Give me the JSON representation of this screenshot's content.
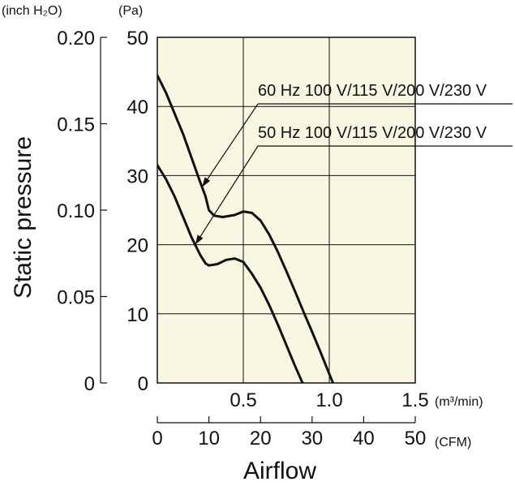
{
  "chart_data": {
    "type": "line",
    "title": "",
    "ylabel": "Static pressure",
    "xlabel": "Airflow",
    "grid": true,
    "x_unit_primary": "(m³/min)",
    "x_unit_secondary": "(CFM)",
    "y_unit_primary": "(Pa)",
    "y_unit_secondary": "(inch H₂O)",
    "xlim": [
      0,
      1.5
    ],
    "ylim": [
      0,
      50
    ],
    "x_ticks": [
      {
        "v": 0.5,
        "label": "0.5"
      },
      {
        "v": 1.0,
        "label": "1.0"
      },
      {
        "v": 1.5,
        "label": "1.5"
      }
    ],
    "y_ticks": [
      {
        "v": 0,
        "label": "0"
      },
      {
        "v": 10,
        "label": "10"
      },
      {
        "v": 20,
        "label": "20"
      },
      {
        "v": 30,
        "label": "30"
      },
      {
        "v": 40,
        "label": "40"
      },
      {
        "v": 50,
        "label": "50"
      }
    ],
    "x2_ticks": [
      {
        "v": 0,
        "label": "0"
      },
      {
        "v": 10,
        "label": "10"
      },
      {
        "v": 20,
        "label": "20"
      },
      {
        "v": 30,
        "label": "30"
      },
      {
        "v": 40,
        "label": "40"
      },
      {
        "v": 50,
        "label": "50"
      }
    ],
    "y2_ticks": [
      {
        "v": 0,
        "label": "0"
      },
      {
        "v": 0.05,
        "label": "0.05"
      },
      {
        "v": 0.1,
        "label": "0.10"
      },
      {
        "v": 0.15,
        "label": "0.15"
      },
      {
        "v": 0.2,
        "label": "0.20"
      }
    ],
    "series": [
      {
        "name": "60 Hz 100 V/115 V/200 V/230 V",
        "x": [
          0,
          0.05,
          0.1,
          0.15,
          0.2,
          0.25,
          0.28,
          0.3,
          0.33,
          0.38,
          0.45,
          0.5,
          0.55,
          0.6,
          0.65,
          0.7,
          0.75,
          0.8,
          0.85,
          0.9,
          0.95,
          1.0,
          1.03,
          1.05
        ],
        "y": [
          44.5,
          42.0,
          39.0,
          36.0,
          32.5,
          29.0,
          27.0,
          25.0,
          24.2,
          24.0,
          24.3,
          24.8,
          24.6,
          23.5,
          21.5,
          19.0,
          16.2,
          13.3,
          10.3,
          7.4,
          4.4,
          1.3,
          -0.5,
          -1.0
        ]
      },
      {
        "name": "50 Hz 100 V/115 V/200 V/230 V",
        "x": [
          0,
          0.05,
          0.1,
          0.15,
          0.2,
          0.25,
          0.28,
          0.3,
          0.35,
          0.4,
          0.45,
          0.5,
          0.55,
          0.6,
          0.65,
          0.7,
          0.75,
          0.8,
          0.85,
          0.88
        ],
        "y": [
          31.5,
          29.5,
          27.0,
          24.0,
          21.0,
          18.5,
          17.3,
          17.0,
          17.2,
          17.8,
          18.0,
          17.5,
          15.8,
          13.8,
          11.3,
          8.5,
          5.5,
          2.5,
          -0.3,
          -1.0
        ]
      }
    ],
    "annotations": [
      {
        "text": "60 Hz 100 V/115 V/200 V/230 V",
        "series": 0,
        "at_x": 0.26
      },
      {
        "text": "50 Hz 100 V/115 V/200 V/230 V",
        "series": 1,
        "at_x": 0.22
      }
    ]
  }
}
